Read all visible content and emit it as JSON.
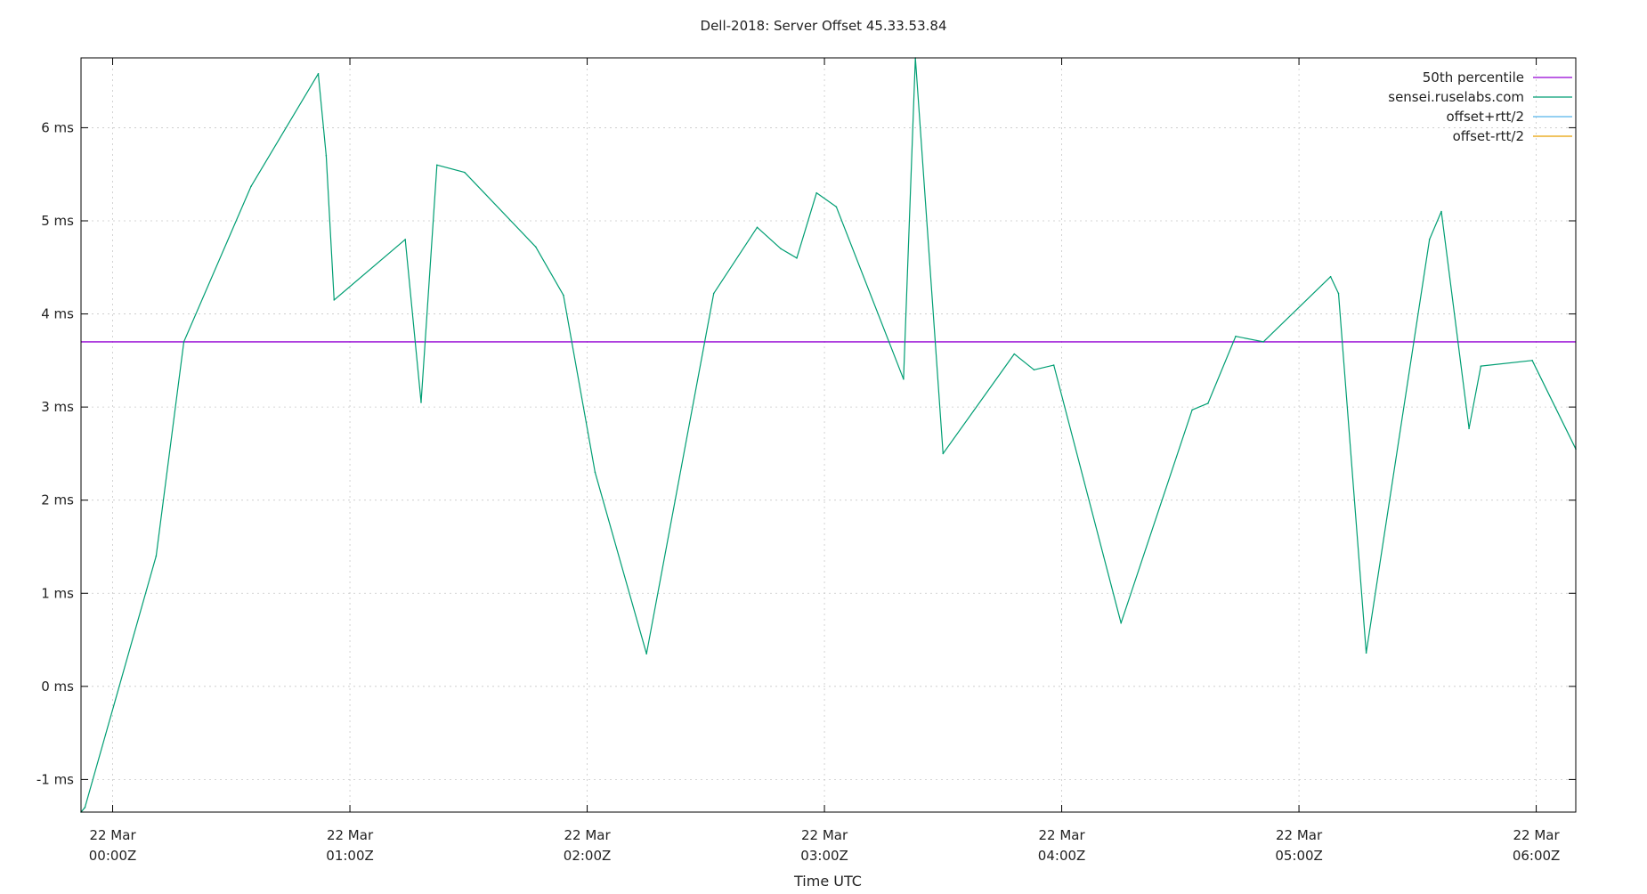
{
  "chart_data": {
    "type": "line",
    "title": "Dell-2018: Server Offset 45.33.53.84",
    "xlabel": "Time UTC",
    "ylabel": "",
    "xlim": [
      "2018-03-21T23:52Z",
      "2018-03-22T06:10Z"
    ],
    "ylim": [
      -1.35,
      6.75
    ],
    "y_ticks": [
      {
        "value": -1,
        "label": "-1 ms"
      },
      {
        "value": 0,
        "label": "0 ms"
      },
      {
        "value": 1,
        "label": "1 ms"
      },
      {
        "value": 2,
        "label": "2 ms"
      },
      {
        "value": 3,
        "label": "3 ms"
      },
      {
        "value": 4,
        "label": "4 ms"
      },
      {
        "value": 5,
        "label": "5 ms"
      },
      {
        "value": 6,
        "label": "6 ms"
      }
    ],
    "x_ticks": [
      {
        "value": "2018-03-22T00:00Z",
        "line1": "22 Mar",
        "line2": "00:00Z"
      },
      {
        "value": "2018-03-22T01:00Z",
        "line1": "22 Mar",
        "line2": "01:00Z"
      },
      {
        "value": "2018-03-22T02:00Z",
        "line1": "22 Mar",
        "line2": "02:00Z"
      },
      {
        "value": "2018-03-22T03:00Z",
        "line1": "22 Mar",
        "line2": "03:00Z"
      },
      {
        "value": "2018-03-22T04:00Z",
        "line1": "22 Mar",
        "line2": "04:00Z"
      },
      {
        "value": "2018-03-22T05:00Z",
        "line1": "22 Mar",
        "line2": "05:00Z"
      },
      {
        "value": "2018-03-22T06:00Z",
        "line1": "22 Mar",
        "line2": "06:00Z"
      }
    ],
    "grid": true,
    "legend_position": "top-right",
    "series": [
      {
        "name": "50th percentile",
        "color": "#9400d3",
        "kind": "hline",
        "y": 3.7
      },
      {
        "name": "sensei.ruselabs.com",
        "color": "#009e73",
        "kind": "line",
        "points": [
          [
            "2018-03-21T23:52:00Z",
            -1.35
          ],
          [
            "2018-03-21T23:53:00Z",
            -1.3
          ],
          [
            "2018-03-22T00:11:00Z",
            1.4
          ],
          [
            "2018-03-22T00:18:00Z",
            3.7
          ],
          [
            "2018-03-22T00:35:00Z",
            5.37
          ],
          [
            "2018-03-22T00:52:00Z",
            6.58
          ],
          [
            "2018-03-22T00:54:00Z",
            5.7
          ],
          [
            "2018-03-22T00:56:00Z",
            4.15
          ],
          [
            "2018-03-22T01:14:00Z",
            4.8
          ],
          [
            "2018-03-22T01:18:00Z",
            3.05
          ],
          [
            "2018-03-22T01:22:00Z",
            5.6
          ],
          [
            "2018-03-22T01:29:00Z",
            5.52
          ],
          [
            "2018-03-22T01:47:00Z",
            4.72
          ],
          [
            "2018-03-22T01:54:00Z",
            4.2
          ],
          [
            "2018-03-22T02:02:00Z",
            2.3
          ],
          [
            "2018-03-22T02:15:00Z",
            0.35
          ],
          [
            "2018-03-22T02:32:00Z",
            4.22
          ],
          [
            "2018-03-22T02:43:00Z",
            4.93
          ],
          [
            "2018-03-22T02:49:00Z",
            4.7
          ],
          [
            "2018-03-22T02:53:00Z",
            4.6
          ],
          [
            "2018-03-22T02:58:00Z",
            5.3
          ],
          [
            "2018-03-22T03:03:00Z",
            5.15
          ],
          [
            "2018-03-22T03:20:00Z",
            3.3
          ],
          [
            "2018-03-22T03:23:00Z",
            6.75
          ],
          [
            "2018-03-22T03:30:00Z",
            2.5
          ],
          [
            "2018-03-22T03:48:00Z",
            3.57
          ],
          [
            "2018-03-22T03:53:00Z",
            3.4
          ],
          [
            "2018-03-22T03:58:00Z",
            3.45
          ],
          [
            "2018-03-22T04:15:00Z",
            0.68
          ],
          [
            "2018-03-22T04:33:00Z",
            2.97
          ],
          [
            "2018-03-22T04:37:00Z",
            3.04
          ],
          [
            "2018-03-22T04:44:00Z",
            3.76
          ],
          [
            "2018-03-22T04:51:00Z",
            3.7
          ],
          [
            "2018-03-22T05:08:00Z",
            4.4
          ],
          [
            "2018-03-22T05:10:00Z",
            4.22
          ],
          [
            "2018-03-22T05:17:00Z",
            0.36
          ],
          [
            "2018-03-22T05:33:00Z",
            4.8
          ],
          [
            "2018-03-22T05:36:00Z",
            5.1
          ],
          [
            "2018-03-22T05:43:00Z",
            2.77
          ],
          [
            "2018-03-22T05:46:00Z",
            3.44
          ],
          [
            "2018-03-22T05:59:00Z",
            3.5
          ],
          [
            "2018-03-22T06:10:00Z",
            2.55
          ]
        ]
      },
      {
        "name": "offset+rtt/2",
        "color": "#56b4e9",
        "kind": "none"
      },
      {
        "name": "offset-rtt/2",
        "color": "#e69f00",
        "kind": "none"
      }
    ]
  }
}
